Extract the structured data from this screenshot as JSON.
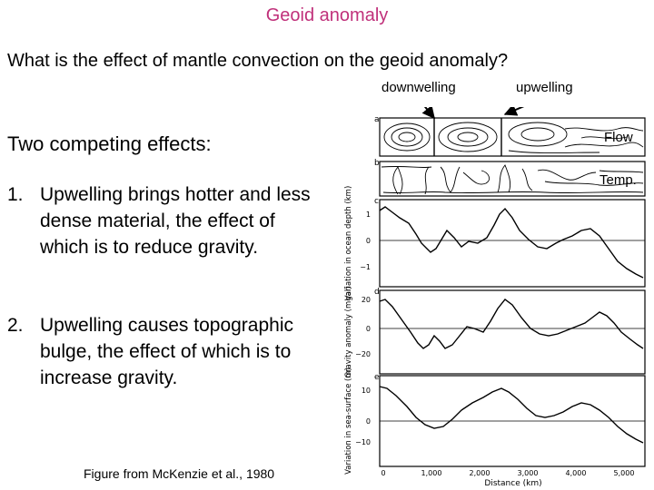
{
  "slide": {
    "title": "Geoid anomaly",
    "question": "What is the effect of mantle convection on the geoid anomaly?",
    "competing": "Two competing effects:",
    "items": [
      {
        "num": "1.",
        "text": "Upwelling brings hotter and less dense material, the effect of which is to reduce gravity."
      },
      {
        "num": "2.",
        "text": "Upwelling causes topographic bulge, the effect of which is to increase gravity."
      }
    ],
    "caption": "Figure from McKenzie et al., 1980"
  },
  "figure": {
    "downwelling_label": "downwelling",
    "upwelling_label": "upwelling",
    "flow_label": "Flow",
    "temp_label": "Temp.",
    "panel_letters": [
      "a",
      "b",
      "c",
      "d",
      "e"
    ],
    "panel_c": {
      "ylabel": "Variation in ocean depth (km)",
      "ticks": [
        "1",
        "0",
        "−1"
      ]
    },
    "panel_d": {
      "ylabel": "Gravity anomaly (mgal)",
      "ticks": [
        "20",
        "0",
        "−20"
      ]
    },
    "panel_e": {
      "ylabel": "Variation in sea-surface (m)",
      "ticks": [
        "10",
        "0",
        "−10"
      ]
    },
    "x_ticks": [
      "0",
      "1,000",
      "2,000",
      "3,000",
      "4,000",
      "5,000"
    ],
    "x_label": "Distance (km)"
  },
  "colors": {
    "title": "#c0307a"
  }
}
